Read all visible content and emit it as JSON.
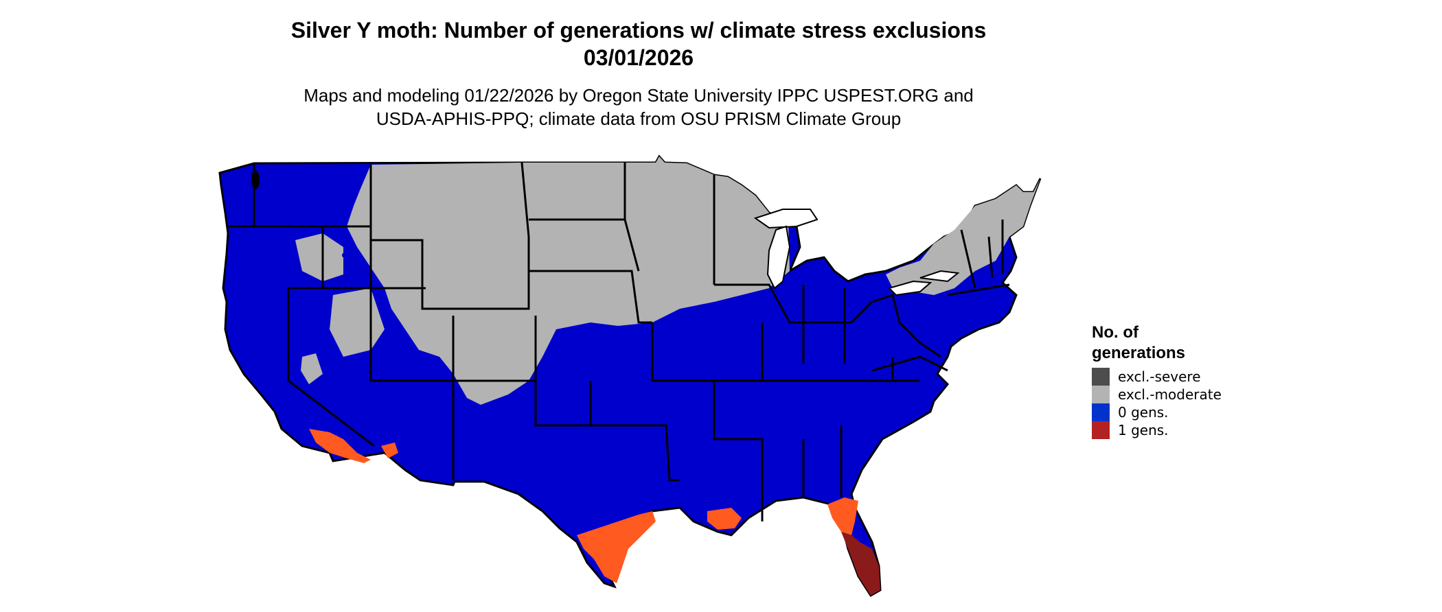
{
  "title": {
    "line1": "Silver Y moth: Number of generations w/ climate stress exclusions",
    "line2": "03/01/2026"
  },
  "subtitle": {
    "line1": "Maps and modeling 01/22/2026 by Oregon State University IPPC USPEST.ORG and",
    "line2": "USDA-APHIS-PPQ; climate data from OSU PRISM Climate Group"
  },
  "legend": {
    "title_line1": "No. of",
    "title_line2": "generations",
    "items": [
      {
        "label": "excl.-severe",
        "color": "#4d4d4d"
      },
      {
        "label": "excl.-moderate",
        "color": "#b3b3b3"
      },
      {
        "label": "0 gens.",
        "color": "#0000cc"
      },
      {
        "label": "1 gens.",
        "color": "#b22222"
      }
    ]
  },
  "colors": {
    "blue": "#0000cc",
    "gray": "#b3b3b3",
    "orange": "#ff5a1f",
    "darkred": "#8b1a1a",
    "border": "#000000"
  }
}
